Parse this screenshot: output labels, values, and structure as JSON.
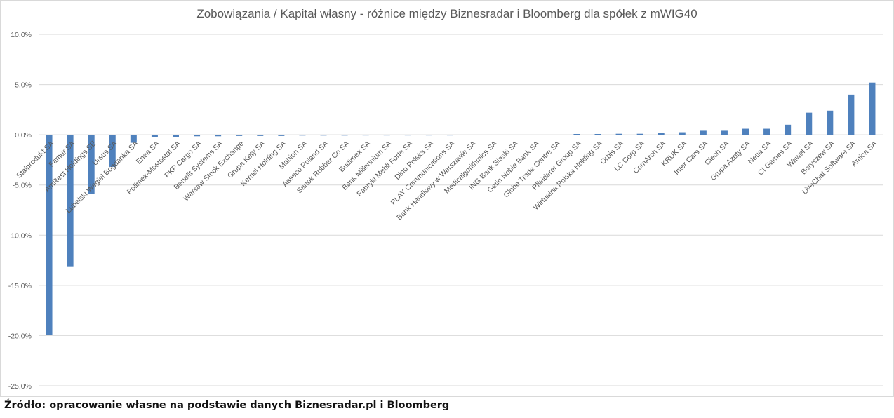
{
  "chart_data": {
    "type": "bar",
    "title": "Zobowiązania / Kapitał własny - różnice między Biznesradar i Bloomberg  dla spółek z mWIG40",
    "xlabel": "",
    "ylabel": "",
    "ylim": [
      -25,
      10
    ],
    "yticks": [
      10,
      5,
      0,
      -5,
      -10,
      -15,
      -20,
      -25
    ],
    "ytick_labels": [
      "10,0%",
      "5,0%",
      "0,0%",
      "-5,0%",
      "-10,0%",
      "-15,0%",
      "-20,0%",
      "-25,0%"
    ],
    "grid": true,
    "legend": "none",
    "bar_color": "#4f81bd",
    "categories": [
      "Stalprodukt SA",
      "Famur SA",
      "AmRest Holdings SE",
      "Ursus SA",
      "Lubelski Wegiel Bogdanka SA",
      "Enea SA",
      "Polimex-Mostostal SA",
      "PKP Cargo SA",
      "Benefit Systems SA",
      "Warsaw Stock Exchange",
      "Grupa Kety SA",
      "Kernel Holding SA",
      "Mabion SA",
      "Asseco Poland SA",
      "Sanok Rubber Co SA",
      "Budimex SA",
      "Bank Millennium SA",
      "Fabryki Mebli Forte SA",
      "Dino Polska SA",
      "PLAY Communications SA",
      "Bank Handlowy w Warszawie SA",
      "Medicalgorithmics SA",
      "ING Bank Slaski SA",
      "Getin Noble Bank SA",
      "Globe Trade Centre SA",
      "Pfleiderer Group SA",
      "Wirtualna Polska Holding SA",
      "Orbis SA",
      "LC Corp SA",
      "ComArch SA",
      "KRUK SA",
      "Inter Cars SA",
      "Ciech SA",
      "Grupa Azoty SA",
      "Netia SA",
      "CI Games SA",
      "Wawel SA",
      "Boryszew SA",
      "LiveChat Software SA",
      "Amica SA"
    ],
    "values": [
      -19.9,
      -13.1,
      -5.9,
      -3.2,
      -0.8,
      -0.2,
      -0.2,
      -0.15,
      -0.15,
      -0.12,
      -0.12,
      -0.12,
      -0.08,
      -0.08,
      -0.08,
      -0.06,
      -0.06,
      -0.06,
      -0.05,
      -0.04,
      0,
      0,
      0,
      0,
      0,
      0.08,
      0.08,
      0.1,
      0.1,
      0.15,
      0.25,
      0.4,
      0.4,
      0.6,
      0.6,
      1.0,
      2.2,
      2.4,
      4.0,
      5.2
    ]
  },
  "source_note": "Źródło: opracowanie własne na podstawie danych Biznesradar.pl i Bloomberg"
}
